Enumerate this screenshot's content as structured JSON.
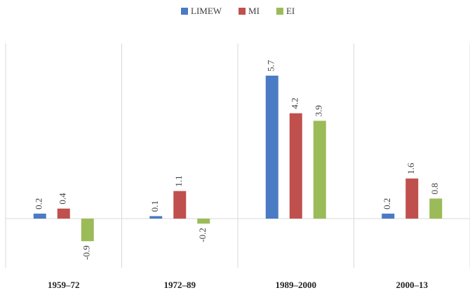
{
  "chart_data": {
    "type": "bar",
    "categories": [
      "1959–72",
      "1972–89",
      "1989–2000",
      "2000–13"
    ],
    "series": [
      {
        "name": "LIMEW",
        "color": "#4a7bc4",
        "values": [
          0.2,
          0.1,
          5.7,
          0.2
        ]
      },
      {
        "name": "MI",
        "color": "#c0504d",
        "values": [
          0.4,
          1.1,
          4.2,
          1.6
        ]
      },
      {
        "name": "EI",
        "color": "#9bbb59",
        "values": [
          -0.9,
          -0.2,
          3.9,
          0.8
        ]
      }
    ],
    "legend": "top"
  }
}
